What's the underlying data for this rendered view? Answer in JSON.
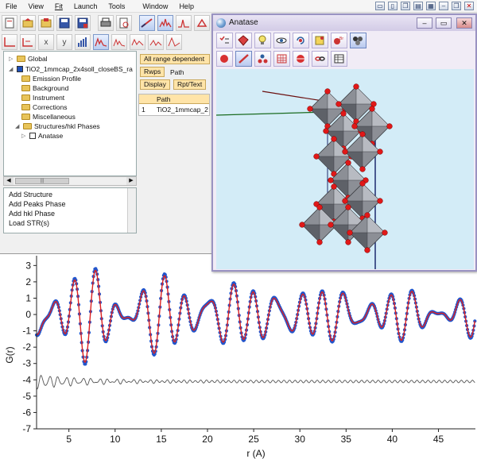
{
  "menubar": {
    "items": [
      "File",
      "View",
      "Fit",
      "Launch",
      "Tools",
      "Window",
      "Help"
    ]
  },
  "toolbar2": {
    "x_label": "x",
    "y_label": "y"
  },
  "tree": {
    "items": [
      {
        "label": "Global",
        "level": 0,
        "type": "folder"
      },
      {
        "label": "TiO2_1mmcap_2x4soll_closeBS_ra",
        "level": 0,
        "type": "file"
      },
      {
        "label": "Emission Profile",
        "level": 1,
        "type": "folder"
      },
      {
        "label": "Background",
        "level": 1,
        "type": "folder"
      },
      {
        "label": "Instrument",
        "level": 1,
        "type": "folder"
      },
      {
        "label": "Corrections",
        "level": 1,
        "type": "folder"
      },
      {
        "label": "Miscellaneous",
        "level": 1,
        "type": "folder"
      },
      {
        "label": "Structures/hkl Phases",
        "level": 1,
        "type": "folder"
      },
      {
        "label": "Anatase",
        "level": 2,
        "type": "structure"
      }
    ]
  },
  "commands": {
    "items": [
      "Add Structure",
      "Add Peaks Phase",
      "Add hkl Phase",
      "Load STR(s)",
      "..."
    ]
  },
  "params": {
    "range_button": "All range dependent",
    "rwps_button": "Rwps",
    "path_label": "Path",
    "display_button": "Display",
    "rpt_button": "Rpt/Text",
    "table_header": "Path",
    "row_index": "1",
    "row_value": "TiO2_1mmcap_2"
  },
  "anatase_window": {
    "title": "Anatase",
    "controls": [
      "minimize",
      "maximize",
      "close"
    ]
  },
  "chart_data": {
    "type": "line",
    "xlabel": "r (A)",
    "ylabel": "G(r)",
    "xlim": [
      1.5,
      49
    ],
    "ylim": [
      -7,
      3.6
    ],
    "xticks": [
      5,
      10,
      15,
      20,
      25,
      30,
      35,
      40,
      45
    ],
    "yticks": [
      3,
      2,
      1,
      0,
      -1,
      -2,
      -3,
      -4,
      -5,
      -6,
      -7
    ],
    "series": [
      {
        "color": "#2255cc",
        "style": "points",
        "baseline": 0
      },
      {
        "color": "#dd2222",
        "style": "line",
        "baseline": 0
      },
      {
        "color": "#555555",
        "style": "line",
        "baseline": -4.1
      }
    ]
  }
}
